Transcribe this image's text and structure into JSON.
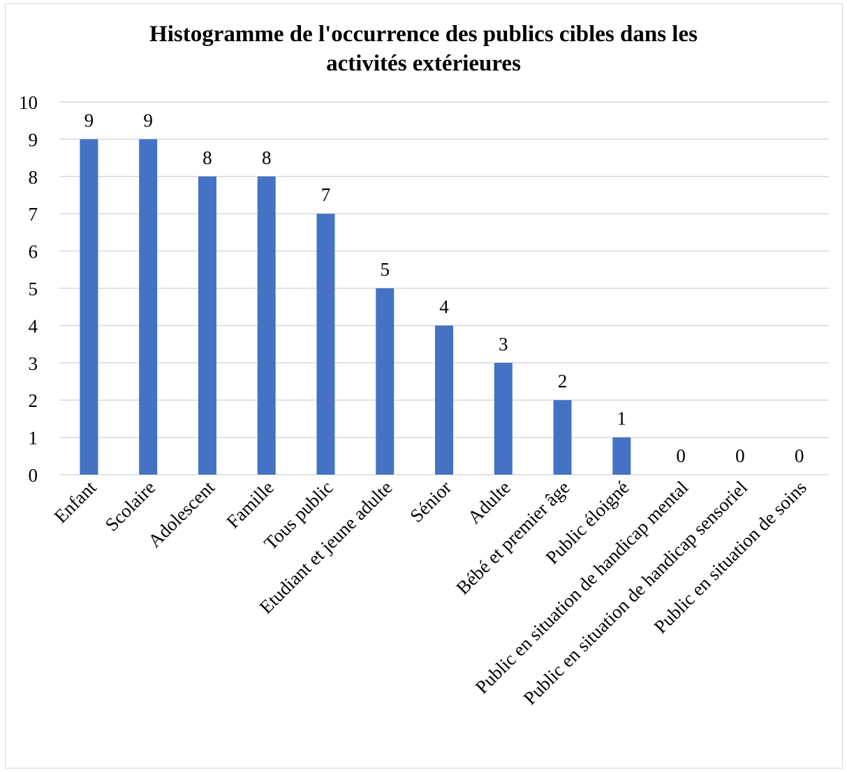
{
  "chart_data": {
    "type": "bar",
    "title_lines": [
      "Histogramme de l'occurrence des publics cibles dans les",
      "activités extérieures"
    ],
    "categories": [
      "Enfant",
      "Scolaire",
      "Adolescent",
      "Famille",
      "Tous public",
      "Etudiant et jeune adulte",
      "Sénior",
      "Adulte",
      "Bébé et premier âge",
      "Public éloigné",
      "Public en situation de handicap mental",
      "Public en situation de handicap sensoriel",
      "Public en situation de soins"
    ],
    "values": [
      9,
      9,
      8,
      8,
      7,
      5,
      4,
      3,
      2,
      1,
      0,
      0,
      0
    ],
    "data_labels": [
      "9",
      "9",
      "8",
      "8",
      "7",
      "5",
      "4",
      "3",
      "2",
      "1",
      "0",
      "0",
      "0"
    ],
    "ylim": [
      0,
      10
    ],
    "yticks": [
      0,
      1,
      2,
      3,
      4,
      5,
      6,
      7,
      8,
      9,
      10
    ],
    "xlabel": "",
    "ylabel": "",
    "grid": true,
    "legend": "none",
    "bar_color": "#4472C4",
    "grid_color": "#d9d9d9"
  }
}
